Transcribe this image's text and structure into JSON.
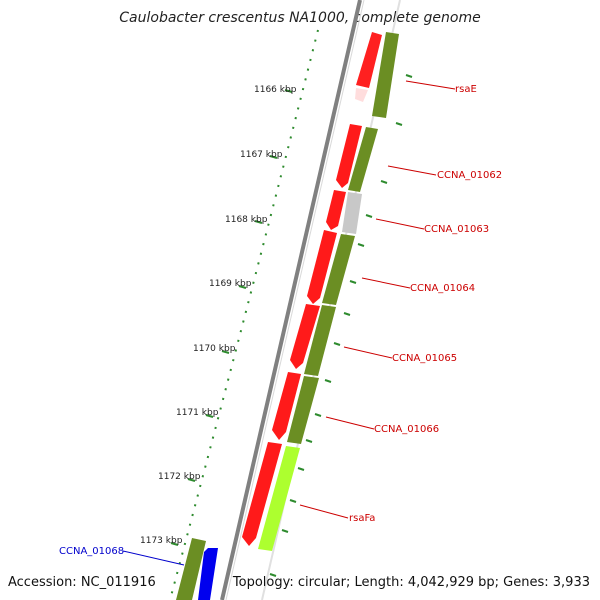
{
  "title": "Caulobacter crescentus NA1000, complete genome",
  "accession": "Accession: NC_011916",
  "topology": "Topology: circular; Length: 4,042,929 bp; Genes: 3,933",
  "ticks": [
    "1166 kbp",
    "1167 kbp",
    "1168 kbp",
    "1169 kbp",
    "1170 kbp",
    "1171 kbp",
    "1172 kbp",
    "1173 kbp"
  ],
  "gene_labels": [
    {
      "name": "rsaE",
      "color": "#cc0000"
    },
    {
      "name": "CCNA_01062",
      "color": "#cc0000"
    },
    {
      "name": "CCNA_01063",
      "color": "#cc0000"
    },
    {
      "name": "CCNA_01064",
      "color": "#cc0000"
    },
    {
      "name": "CCNA_01065",
      "color": "#cc0000"
    },
    {
      "name": "CCNA_01066",
      "color": "#cc0000"
    },
    {
      "name": "rsaFa",
      "color": "#cc0000"
    },
    {
      "name": "CCNA_01068",
      "color": "#0000cc"
    }
  ],
  "colors": {
    "cds_forward": "#ff0000",
    "cds_green": "#6b8e23",
    "cds_lightgreen": "#adff2f",
    "cds_grey": "#c8c8c8",
    "cds_blue": "#0000ff",
    "backbone": "#808080",
    "tick_green": "#2e8b2e"
  }
}
